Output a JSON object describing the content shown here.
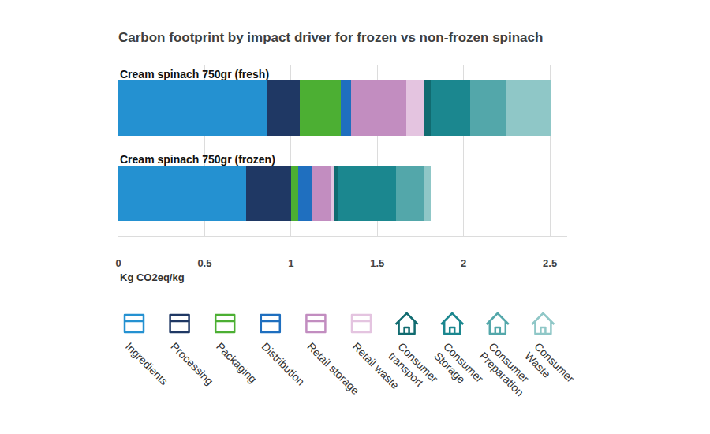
{
  "chart_data": {
    "type": "bar",
    "title": "Carbon footprint by impact driver for frozen vs non-frozen spinach",
    "x_label": "Kg CO2eq/kg",
    "orientation": "horizontal",
    "stacked": true,
    "categories": [
      "Cream spinach 750gr (fresh)",
      "Cream spinach 750gr (frozen)"
    ],
    "series": [
      {
        "name": "Ingredients",
        "color": "#2491d1",
        "values": [
          0.86,
          0.74
        ]
      },
      {
        "name": "Processing",
        "color": "#1f3864",
        "values": [
          0.19,
          0.26
        ]
      },
      {
        "name": "Packaging",
        "color": "#4caf33",
        "values": [
          0.24,
          0.04
        ]
      },
      {
        "name": "Distribution",
        "color": "#1f6fbf",
        "values": [
          0.06,
          0.08
        ]
      },
      {
        "name": "Retail storage",
        "color": "#c28dc0",
        "values": [
          0.32,
          0.11
        ]
      },
      {
        "name": "Retail waste",
        "color": "#e4c4e0",
        "values": [
          0.1,
          0.02
        ]
      },
      {
        "name": "Consumer transport",
        "color": "#116b70",
        "values": [
          0.04,
          0.02
        ]
      },
      {
        "name": "Consumer Storage",
        "color": "#1b878f",
        "values": [
          0.23,
          0.34
        ]
      },
      {
        "name": "Consumer Preparation",
        "color": "#53a7aa",
        "values": [
          0.21,
          0.16
        ]
      },
      {
        "name": "Consumer Waste",
        "color": "#8fc7c7",
        "values": [
          0.26,
          0.04
        ]
      }
    ],
    "xlim": [
      0,
      2.6
    ],
    "xticks": [
      0,
      0.5,
      1,
      1.5,
      2,
      2.5
    ],
    "grid": true,
    "tick_labels": "x",
    "legend": "bottom"
  }
}
